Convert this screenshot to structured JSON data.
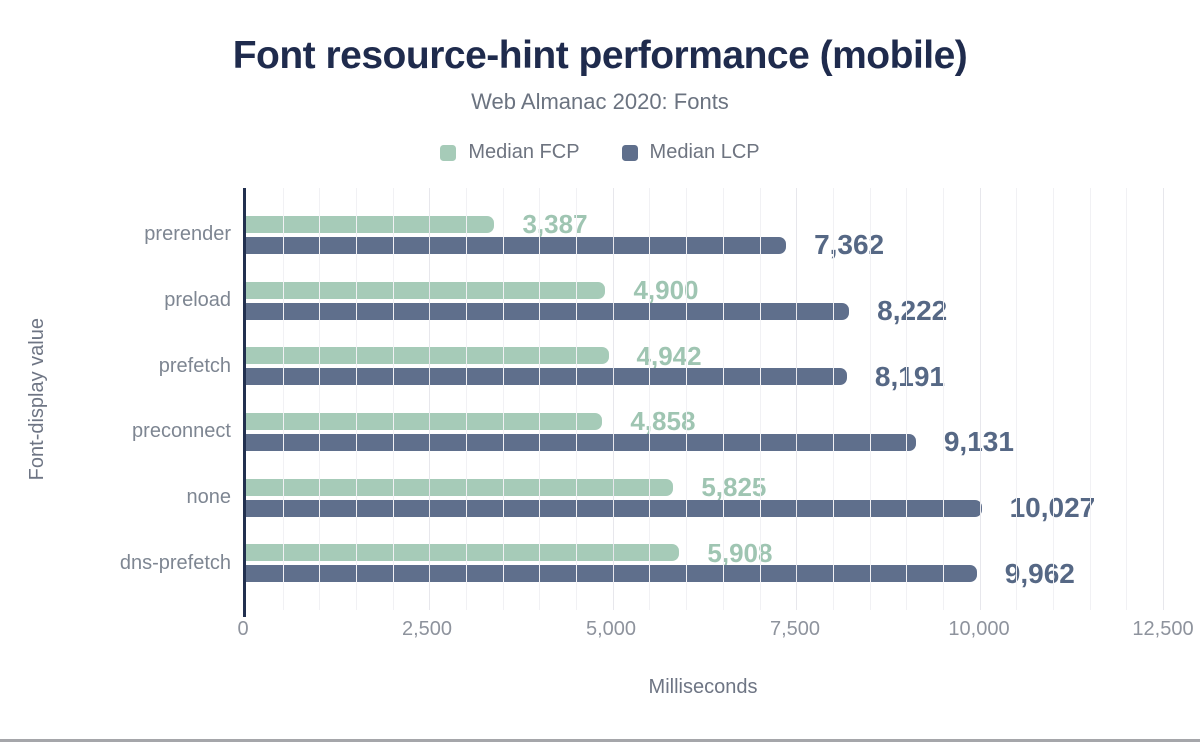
{
  "chart_data": {
    "type": "bar",
    "orientation": "horizontal",
    "title": "Font resource-hint performance (mobile)",
    "subtitle": "Web Almanac 2020: Fonts",
    "xlabel": "Milliseconds",
    "ylabel": "Font-display value",
    "xlim": [
      0,
      12500
    ],
    "x_ticks": [
      0,
      2500,
      5000,
      7500,
      10000,
      12500
    ],
    "grid_step": 500,
    "major_grid_step": 2500,
    "grid": true,
    "legend_position": "top",
    "categories": [
      "prerender",
      "preload",
      "prefetch",
      "preconnect",
      "none",
      "dns-prefetch"
    ],
    "series": [
      {
        "name": "Median FCP",
        "color": "#a6cbb8",
        "label_color": "#9fc5b2",
        "values": [
          3387,
          4900,
          4942,
          4858,
          5825,
          5908
        ]
      },
      {
        "name": "Median LCP",
        "color": "#5f6f8c",
        "label_color": "#566885",
        "values": [
          7362,
          8222,
          8191,
          9131,
          10027,
          9962
        ]
      }
    ],
    "colors": {
      "title": "#1f2b4d",
      "axis_line": "#22304f",
      "grid_minor": "#f1f1f4",
      "grid_major": "#e7e7ec",
      "axis_text": "#8e939d",
      "category_text": "#7e8692"
    }
  }
}
